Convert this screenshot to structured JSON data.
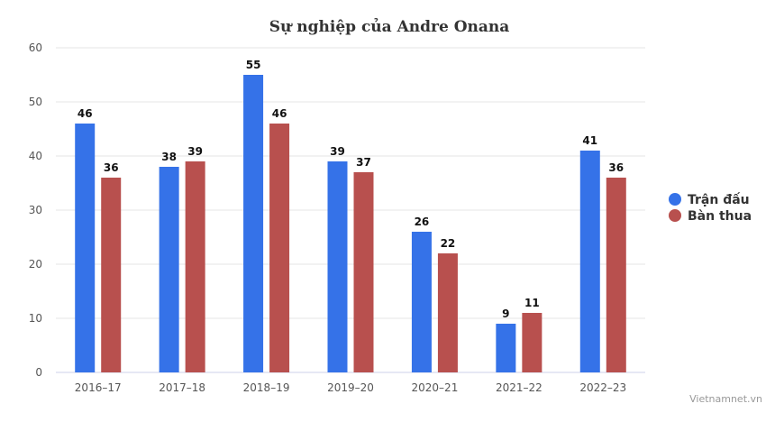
{
  "chart_data": {
    "type": "bar",
    "title": "Sự nghiệp của Andre Onana",
    "categories": [
      "2016–17",
      "2017–18",
      "2018–19",
      "2019–20",
      "2020–21",
      "2021–22",
      "2022–23"
    ],
    "series": [
      {
        "name": "Trận đấu",
        "color": "#3572e8",
        "values": [
          46,
          38,
          55,
          39,
          26,
          9,
          41
        ]
      },
      {
        "name": "Bàn thua",
        "color": "#b8504e",
        "values": [
          36,
          39,
          46,
          37,
          22,
          11,
          36
        ]
      }
    ],
    "ylim": [
      0,
      60
    ],
    "yticks": [
      0,
      10,
      20,
      30,
      40,
      50,
      60
    ],
    "grid": true,
    "legend_position": "right",
    "data_labels": true
  },
  "credit": "Vietnamnet.vn"
}
